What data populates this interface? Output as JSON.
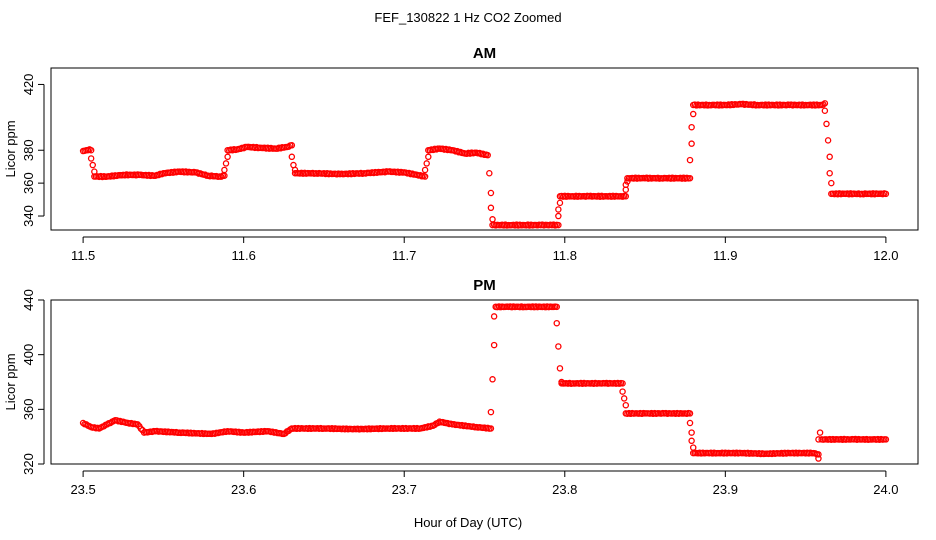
{
  "chart_data": {
    "type": "scatter",
    "title": "FEF_130822  1 Hz CO2 Zoomed",
    "xlabel": "Hour of Day (UTC)",
    "marker_color": "#ff0000",
    "panels": [
      {
        "title": "AM",
        "ylabel": "Licor ppm",
        "xlim": [
          11.48,
          12.02
        ],
        "ylim": [
          331.5,
          430
        ],
        "xticks": [
          11.5,
          11.6,
          11.7,
          11.8,
          11.9,
          12.0
        ],
        "xtick_labels": [
          "11.5",
          "11.6",
          "11.7",
          "11.8",
          "11.9",
          "12.0"
        ],
        "yticks": [
          340,
          360,
          380,
          420
        ],
        "ytick_labels": [
          "340",
          "360",
          "380",
          "420"
        ],
        "series": [
          {
            "segments": [
              {
                "x": [
                  11.5,
                  11.502,
                  11.504,
                  11.505
                ],
                "y": [
                  379.5,
                  380,
                  380.5,
                  380
                ]
              },
              {
                "x": [
                  11.505,
                  11.506,
                  11.507
                ],
                "y": [
                  375,
                  371,
                  367
                ]
              },
              {
                "x": [
                  11.507,
                  11.515,
                  11.525,
                  11.535,
                  11.545,
                  11.55,
                  11.56,
                  11.57,
                  11.578,
                  11.585,
                  11.588
                ],
                "y": [
                  364,
                  364,
                  365,
                  365,
                  364.5,
                  366,
                  367,
                  366.5,
                  364.5,
                  364,
                  364.5
                ]
              },
              {
                "x": [
                  11.588,
                  11.589,
                  11.59
                ],
                "y": [
                  368,
                  372,
                  376
                ]
              },
              {
                "x": [
                  11.59,
                  11.596,
                  11.602,
                  11.61,
                  11.62,
                  11.627,
                  11.63
                ],
                "y": [
                  380,
                  380.5,
                  382,
                  381.5,
                  381,
                  382,
                  383
                ]
              },
              {
                "x": [
                  11.63,
                  11.631,
                  11.632
                ],
                "y": [
                  376,
                  371,
                  368
                ]
              },
              {
                "x": [
                  11.632,
                  11.645,
                  11.66,
                  11.675,
                  11.69,
                  11.7,
                  11.708,
                  11.713
                ],
                "y": [
                  366,
                  366,
                  365.5,
                  366,
                  367,
                  366.5,
                  365,
                  364
                ]
              },
              {
                "x": [
                  11.713,
                  11.714,
                  11.715
                ],
                "y": [
                  368,
                  372,
                  376
                ]
              },
              {
                "x": [
                  11.715,
                  11.722,
                  11.73,
                  11.738,
                  11.745,
                  11.752
                ],
                "y": [
                  380,
                  381,
                  380,
                  378,
                  378.5,
                  377
                ]
              },
              {
                "x": [
                  11.753,
                  11.754,
                  11.754,
                  11.755
                ],
                "y": [
                  366,
                  354,
                  345,
                  338
                ]
              },
              {
                "x": [
                  11.755,
                  11.765,
                  11.775,
                  11.785,
                  11.792,
                  11.796
                ],
                "y": [
                  334.5,
                  334.5,
                  334.5,
                  334.5,
                  334.5,
                  334.5
                ]
              },
              {
                "x": [
                  11.796,
                  11.796,
                  11.797
                ],
                "y": [
                  340,
                  344,
                  348
                ]
              },
              {
                "x": [
                  11.797,
                  11.805,
                  11.815,
                  11.825,
                  11.835,
                  11.838
                ],
                "y": [
                  352,
                  352,
                  352,
                  352,
                  352,
                  352
                ]
              },
              {
                "x": [
                  11.838,
                  11.838,
                  11.839
                ],
                "y": [
                  356,
                  359,
                  361
                ]
              },
              {
                "x": [
                  11.839,
                  11.85,
                  11.86,
                  11.87,
                  11.878
                ],
                "y": [
                  363,
                  363,
                  363,
                  363,
                  363
                ]
              },
              {
                "x": [
                  11.878,
                  11.879,
                  11.879,
                  11.88
                ],
                "y": [
                  374,
                  384,
                  394,
                  402
                ]
              },
              {
                "x": [
                  11.88,
                  11.89,
                  11.9,
                  11.91,
                  11.92,
                  11.93,
                  11.94,
                  11.95,
                  11.96,
                  11.962
                ],
                "y": [
                  407.5,
                  407.5,
                  407.5,
                  408,
                  407.5,
                  407.5,
                  407.5,
                  407.5,
                  407.5,
                  408.5
                ]
              },
              {
                "x": [
                  11.962,
                  11.963,
                  11.964,
                  11.965,
                  11.965,
                  11.966
                ],
                "y": [
                  404,
                  396,
                  386,
                  376,
                  366,
                  360
                ]
              },
              {
                "x": [
                  11.966,
                  11.975,
                  11.985,
                  11.995,
                  12.0
                ],
                "y": [
                  353.5,
                  353.5,
                  353.5,
                  353.5,
                  353.5
                ]
              }
            ]
          }
        ]
      },
      {
        "title": "PM",
        "ylabel": "Licor ppm",
        "xlim": [
          23.48,
          24.02
        ],
        "ylim": [
          320,
          440
        ],
        "xticks": [
          23.5,
          23.6,
          23.7,
          23.8,
          23.9,
          24.0
        ],
        "xtick_labels": [
          "23.5",
          "23.6",
          "23.7",
          "23.8",
          "23.9",
          "24.0"
        ],
        "yticks": [
          320,
          360,
          400,
          440
        ],
        "ytick_labels": [
          "320",
          "360",
          "400",
          "440"
        ],
        "series": [
          {
            "segments": [
              {
                "x": [
                  23.5,
                  23.505,
                  23.51,
                  23.515,
                  23.52,
                  23.528,
                  23.534,
                  23.538,
                  23.545,
                  23.56,
                  23.58,
                  23.59,
                  23.6,
                  23.615,
                  23.625,
                  23.63,
                  23.65,
                  23.67,
                  23.69,
                  23.71,
                  23.718,
                  23.722,
                  23.73,
                  23.745,
                  23.754
                ],
                "y": [
                  350,
                  347,
                  346,
                  349,
                  352,
                  350,
                  349,
                  343,
                  344,
                  343,
                  342,
                  344,
                  343,
                  344,
                  342,
                  346,
                  346,
                  345.5,
                  346,
                  346,
                  348,
                  351,
                  349,
                  347,
                  346
                ]
              },
              {
                "x": [
                  23.754,
                  23.755,
                  23.756,
                  23.756,
                  23.757
                ],
                "y": [
                  358,
                  382,
                  407,
                  428,
                  435
                ]
              },
              {
                "x": [
                  23.757,
                  23.765,
                  23.775,
                  23.785,
                  23.795
                ],
                "y": [
                  435,
                  435,
                  435,
                  435,
                  435
                ]
              },
              {
                "x": [
                  23.795,
                  23.796,
                  23.797,
                  23.798
                ],
                "y": [
                  423,
                  406,
                  390,
                  380
                ]
              },
              {
                "x": [
                  23.798,
                  23.805,
                  23.815,
                  23.825,
                  23.836
                ],
                "y": [
                  379,
                  379,
                  379,
                  379,
                  379
                ]
              },
              {
                "x": [
                  23.836,
                  23.837,
                  23.838
                ],
                "y": [
                  373,
                  368,
                  363
                ]
              },
              {
                "x": [
                  23.838,
                  23.85,
                  23.862,
                  23.875,
                  23.878
                ],
                "y": [
                  357,
                  357,
                  357,
                  357,
                  357
                ]
              },
              {
                "x": [
                  23.878,
                  23.879,
                  23.879,
                  23.88
                ],
                "y": [
                  350,
                  343,
                  337,
                  332
                ]
              },
              {
                "x": [
                  23.88,
                  23.895,
                  23.91,
                  23.925,
                  23.94,
                  23.955,
                  23.958
                ],
                "y": [
                  328,
                  328,
                  328,
                  327.5,
                  328,
                  328,
                  327
                ]
              },
              {
                "x": [
                  23.958,
                  23.958,
                  23.959
                ],
                "y": [
                  324,
                  338,
                  343
                ]
              },
              {
                "x": [
                  23.96,
                  23.97,
                  23.98,
                  23.99,
                  24.0
                ],
                "y": [
                  338,
                  338,
                  338,
                  338,
                  338
                ]
              }
            ]
          }
        ]
      }
    ]
  }
}
